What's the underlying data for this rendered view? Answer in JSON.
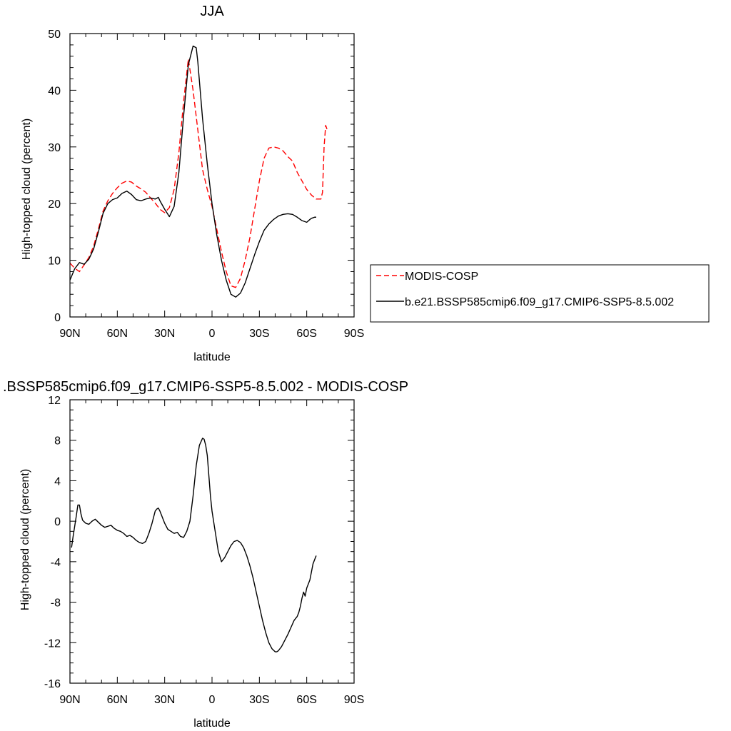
{
  "chart_data": [
    {
      "type": "line",
      "title": "JJA",
      "xlabel": "latitude",
      "ylabel": "High-topped cloud (percent)",
      "xlim": [
        90,
        -90
      ],
      "ylim": [
        0,
        50
      ],
      "x_ticks": [
        {
          "value": 90,
          "label": "90N"
        },
        {
          "value": 60,
          "label": "60N"
        },
        {
          "value": 30,
          "label": "30N"
        },
        {
          "value": 0,
          "label": "0"
        },
        {
          "value": -30,
          "label": "30S"
        },
        {
          "value": -60,
          "label": "60S"
        },
        {
          "value": -90,
          "label": "90S"
        }
      ],
      "y_ticks": [
        0,
        10,
        20,
        30,
        40,
        50
      ],
      "legend_position": "right",
      "series": [
        {
          "name": "MODIS-COSP",
          "color": "#ff0000",
          "dash": true,
          "x": [
            90,
            87,
            84,
            81,
            78,
            75,
            72,
            69,
            66,
            63,
            60,
            57,
            54,
            51,
            48,
            45,
            42,
            39,
            36,
            33,
            30,
            27,
            24,
            21,
            18,
            15,
            12,
            9,
            6,
            3,
            0,
            -3,
            -6,
            -9,
            -12,
            -15,
            -18,
            -21,
            -24,
            -27,
            -30,
            -33,
            -36,
            -39,
            -42,
            -45,
            -48,
            -51,
            -54,
            -56,
            -57,
            -58,
            -60,
            -63,
            -66,
            -69,
            -70,
            -71,
            -72,
            -73
          ],
          "y": [
            9.5,
            8.6,
            8.0,
            9.2,
            10.5,
            12.5,
            15.5,
            18.7,
            20.5,
            21.8,
            22.8,
            23.6,
            24.0,
            23.8,
            23.1,
            22.6,
            22.0,
            21.0,
            20.1,
            19.0,
            18.4,
            19.3,
            22.5,
            29.0,
            38.0,
            45.5,
            40.0,
            33.0,
            26.0,
            22.5,
            19.5,
            15.5,
            11.5,
            8.0,
            5.5,
            5.2,
            6.8,
            10.0,
            14.0,
            19.0,
            24.0,
            28.0,
            29.8,
            30.0,
            29.8,
            29.3,
            28.3,
            27.5,
            25.5,
            24.5,
            24.0,
            23.5,
            22.5,
            21.5,
            20.8,
            20.8,
            22.0,
            30.0,
            33.8,
            33.0
          ]
        },
        {
          "name": "b.e21.BSSP585cmip6.f09_g17.CMIP6-SSP5-8.5.002",
          "color": "#000000",
          "dash": false,
          "x": [
            90,
            87,
            84,
            81,
            78,
            75,
            72,
            69,
            66,
            63,
            60,
            57,
            54,
            51,
            48,
            45,
            42,
            39,
            36,
            34,
            33,
            30,
            27,
            24,
            21,
            18,
            15,
            12,
            10,
            9,
            6,
            3,
            0,
            -3,
            -6,
            -9,
            -12,
            -15,
            -18,
            -21,
            -24,
            -27,
            -30,
            -33,
            -36,
            -39,
            -42,
            -45,
            -48,
            -51,
            -54,
            -57,
            -60,
            -62,
            -63,
            -64,
            -65,
            -66
          ],
          "y": [
            6.5,
            8.5,
            9.6,
            9.3,
            10.2,
            12.0,
            15.0,
            18.3,
            20.0,
            20.7,
            21.0,
            21.8,
            22.2,
            21.6,
            20.7,
            20.5,
            20.8,
            21.0,
            20.8,
            21.1,
            20.5,
            19.0,
            17.7,
            19.5,
            25.5,
            35.5,
            44.5,
            47.8,
            47.5,
            45.0,
            35.0,
            27.0,
            20.0,
            14.5,
            10.0,
            6.5,
            4.0,
            3.5,
            4.2,
            6.0,
            8.5,
            11.0,
            13.3,
            15.3,
            16.4,
            17.2,
            17.8,
            18.1,
            18.2,
            18.1,
            17.6,
            17.0,
            16.7,
            17.2,
            17.4,
            17.5,
            17.6,
            17.6
          ]
        }
      ]
    },
    {
      "type": "line",
      "title": ".BSSP585cmip6.f09_g17.CMIP6-SSP5-8.5.002 - MODIS-COSP",
      "xlabel": "latitude",
      "ylabel": "High-topped cloud (percent)",
      "xlim": [
        90,
        -90
      ],
      "ylim": [
        -16,
        12
      ],
      "x_ticks": [
        {
          "value": 90,
          "label": "90N"
        },
        {
          "value": 60,
          "label": "60N"
        },
        {
          "value": 30,
          "label": "30N"
        },
        {
          "value": 0,
          "label": "0"
        },
        {
          "value": -30,
          "label": "30S"
        },
        {
          "value": -60,
          "label": "60S"
        },
        {
          "value": -90,
          "label": "90S"
        }
      ],
      "y_ticks": [
        -16,
        -12,
        -8,
        -4,
        0,
        4,
        8,
        12
      ],
      "series": [
        {
          "color": "#000000",
          "dash": false,
          "x": [
            89,
            88,
            87,
            86,
            85,
            84,
            83,
            82,
            80,
            78,
            76,
            74,
            72,
            70,
            68,
            66,
            64,
            62,
            60,
            58,
            56,
            54,
            52,
            50,
            48,
            46,
            44,
            42,
            40,
            38,
            36,
            35,
            34,
            33,
            32,
            30,
            28,
            26,
            24,
            22,
            20,
            18,
            16,
            14,
            12,
            10,
            8,
            6,
            5,
            4,
            3,
            2,
            1,
            0,
            -2,
            -4,
            -6,
            -8,
            -10,
            -12,
            -14,
            -16,
            -18,
            -20,
            -22,
            -24,
            -26,
            -28,
            -30,
            -32,
            -34,
            -36,
            -38,
            -40,
            -41,
            -42,
            -44,
            -46,
            -48,
            -50,
            -52,
            -54,
            -55,
            -56,
            -57,
            -58,
            -59,
            -60,
            -62,
            -64,
            -66
          ],
          "y": [
            -2.6,
            -1.5,
            -0.5,
            0.5,
            1.6,
            1.6,
            0.7,
            0.1,
            -0.2,
            -0.3,
            0.0,
            0.2,
            -0.1,
            -0.4,
            -0.6,
            -0.5,
            -0.4,
            -0.7,
            -0.9,
            -1.0,
            -1.2,
            -1.5,
            -1.4,
            -1.6,
            -1.9,
            -2.1,
            -2.2,
            -2.0,
            -1.2,
            -0.2,
            1.0,
            1.2,
            1.3,
            1.0,
            0.6,
            -0.2,
            -0.8,
            -1.0,
            -1.2,
            -1.1,
            -1.5,
            -1.6,
            -1.0,
            0.0,
            2.5,
            5.5,
            7.5,
            8.2,
            8.1,
            7.5,
            6.5,
            4.5,
            2.5,
            1.0,
            -1.0,
            -3.0,
            -4.0,
            -3.6,
            -3.0,
            -2.4,
            -2.0,
            -1.9,
            -2.1,
            -2.6,
            -3.4,
            -4.4,
            -5.6,
            -7.0,
            -8.4,
            -9.8,
            -11.0,
            -12.0,
            -12.6,
            -12.9,
            -12.9,
            -12.8,
            -12.4,
            -11.8,
            -11.2,
            -10.5,
            -9.8,
            -9.4,
            -9.0,
            -8.4,
            -7.6,
            -7.0,
            -7.4,
            -6.6,
            -5.8,
            -4.2,
            -3.4
          ]
        }
      ]
    }
  ]
}
